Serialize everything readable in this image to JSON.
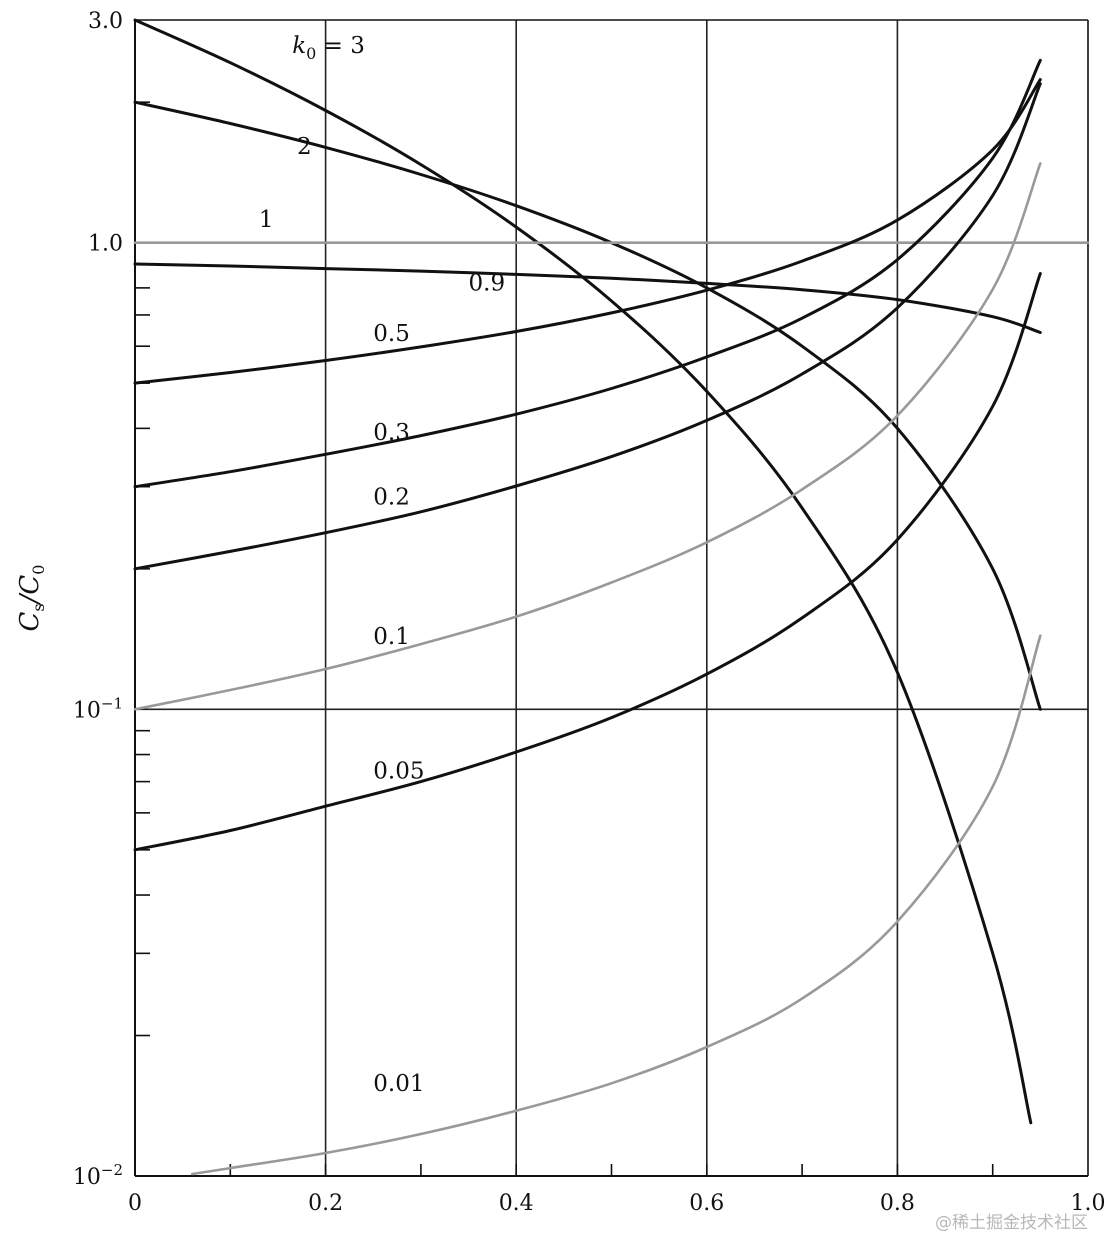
{
  "chart_data": {
    "type": "line",
    "title": "",
    "xlabel": "",
    "ylabel": "Cs/C0",
    "yscale": "log",
    "xlim": [
      0,
      1.0
    ],
    "ylim": [
      0.01,
      3.0
    ],
    "grid": true,
    "x_tick_labels": [
      "0",
      "0.2",
      "0.4",
      "0.6",
      "0.8",
      "1.0"
    ],
    "y_tick_labels": [
      "3.0",
      "1.0",
      "10-1",
      "10-2"
    ],
    "series": [
      {
        "name": "k0 = 3",
        "label": "k0 = 3",
        "color": "#111111",
        "x": [
          0,
          0.1,
          0.2,
          0.3,
          0.4,
          0.5,
          0.6,
          0.7,
          0.8,
          0.9,
          0.94
        ],
        "y": [
          3.0,
          2.43,
          1.92,
          1.47,
          1.08,
          0.75,
          0.48,
          0.27,
          0.12,
          0.03,
          0.013
        ]
      },
      {
        "name": "2",
        "label": "2",
        "color": "#111111",
        "x": [
          0,
          0.1,
          0.2,
          0.3,
          0.4,
          0.5,
          0.6,
          0.7,
          0.8,
          0.9,
          0.95
        ],
        "y": [
          2.0,
          1.8,
          1.6,
          1.4,
          1.2,
          1.0,
          0.8,
          0.6,
          0.4,
          0.2,
          0.1
        ]
      },
      {
        "name": "1",
        "label": "1",
        "color": "#999999",
        "x": [
          0,
          1.0
        ],
        "y": [
          1.0,
          1.0
        ]
      },
      {
        "name": "0.9",
        "label": "0.9",
        "color": "#111111",
        "x": [
          0,
          0.1,
          0.2,
          0.3,
          0.4,
          0.5,
          0.6,
          0.7,
          0.8,
          0.9,
          0.95
        ],
        "y": [
          0.9,
          0.891,
          0.88,
          0.869,
          0.855,
          0.839,
          0.818,
          0.793,
          0.755,
          0.694,
          0.642
        ]
      },
      {
        "name": "0.5",
        "label": "0.5",
        "color": "#111111",
        "x": [
          0,
          0.1,
          0.2,
          0.3,
          0.4,
          0.5,
          0.6,
          0.7,
          0.8,
          0.9,
          0.95
        ],
        "y": [
          0.5,
          0.527,
          0.559,
          0.598,
          0.645,
          0.707,
          0.791,
          0.913,
          1.118,
          1.581,
          2.236
        ]
      },
      {
        "name": "0.3",
        "label": "0.3",
        "color": "#111111",
        "x": [
          0,
          0.1,
          0.2,
          0.3,
          0.4,
          0.5,
          0.6,
          0.7,
          0.8,
          0.9,
          0.95
        ],
        "y": [
          0.3,
          0.323,
          0.352,
          0.386,
          0.429,
          0.487,
          0.569,
          0.689,
          0.92,
          1.518,
          2.459
        ]
      },
      {
        "name": "0.2",
        "label": "0.2",
        "color": "#111111",
        "x": [
          0,
          0.1,
          0.2,
          0.3,
          0.4,
          0.5,
          0.6,
          0.7,
          0.8,
          0.9,
          0.95
        ],
        "y": [
          0.2,
          0.218,
          0.239,
          0.265,
          0.301,
          0.348,
          0.416,
          0.523,
          0.725,
          1.262,
          2.191
        ]
      },
      {
        "name": "0.1",
        "label": "0.1",
        "color": "#999999",
        "x": [
          0,
          0.1,
          0.2,
          0.3,
          0.4,
          0.5,
          0.6,
          0.7,
          0.8,
          0.9,
          0.95
        ],
        "y": [
          0.1,
          0.11,
          0.122,
          0.138,
          0.158,
          0.187,
          0.228,
          0.296,
          0.426,
          0.794,
          1.478
        ]
      },
      {
        "name": "0.05",
        "label": "0.05",
        "color": "#111111",
        "x": [
          0,
          0.1,
          0.2,
          0.3,
          0.4,
          0.5,
          0.6,
          0.7,
          0.8,
          0.9,
          0.95
        ],
        "y": [
          0.05,
          0.055,
          0.062,
          0.07,
          0.081,
          0.096,
          0.119,
          0.157,
          0.231,
          0.446,
          0.859
        ]
      },
      {
        "name": "0.01",
        "label": "0.01",
        "color": "#999999",
        "x": [
          0.06,
          0.1,
          0.2,
          0.3,
          0.4,
          0.5,
          0.6,
          0.7,
          0.8,
          0.9,
          0.95
        ],
        "y": [
          0.0101,
          0.0104,
          0.0112,
          0.0123,
          0.0138,
          0.0158,
          0.0189,
          0.024,
          0.0351,
          0.0683,
          0.1437
        ]
      }
    ],
    "curve_labels": [
      {
        "text": "k",
        "sub": "0",
        "suffix": " = 3",
        "x": 0.165,
        "y": 2.55
      },
      {
        "text": "2",
        "x": 0.17,
        "y": 1.55
      },
      {
        "text": "1",
        "x": 0.13,
        "y": 1.08
      },
      {
        "text": "0.9",
        "x": 0.35,
        "y": 0.79
      },
      {
        "text": "0.5",
        "x": 0.25,
        "y": 0.615
      },
      {
        "text": "0.3",
        "x": 0.25,
        "y": 0.378
      },
      {
        "text": "0.2",
        "x": 0.25,
        "y": 0.275
      },
      {
        "text": "0.1",
        "x": 0.25,
        "y": 0.138
      },
      {
        "text": "0.05",
        "x": 0.25,
        "y": 0.071
      },
      {
        "text": "0.01",
        "x": 0.25,
        "y": 0.0152
      }
    ]
  },
  "watermark": "@稀土掘金技术社区"
}
